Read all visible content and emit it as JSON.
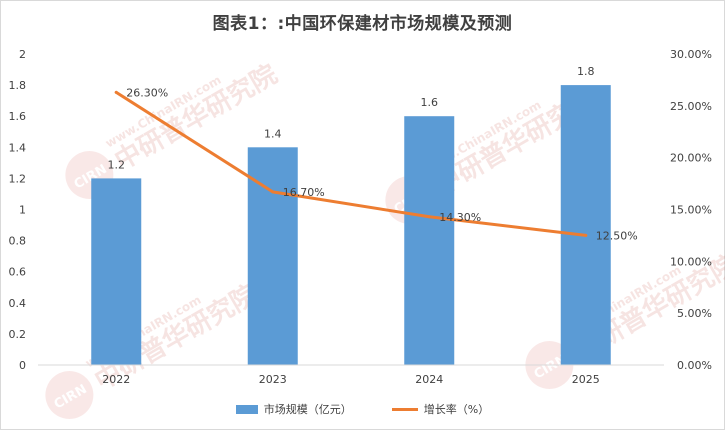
{
  "title": "图表1：:中国环保建材市场规模及预测",
  "chart_data": {
    "type": "bar+line",
    "categories": [
      "2022",
      "2023",
      "2024",
      "2025"
    ],
    "series": [
      {
        "name": "市场规模（亿元）",
        "type": "bar",
        "axis": "left",
        "values": [
          1.2,
          1.4,
          1.6,
          1.8
        ],
        "labels": [
          "1.2",
          "1.4",
          "1.6",
          "1.8"
        ],
        "color": "#5b9bd5"
      },
      {
        "name": "增长率（%）",
        "type": "line",
        "axis": "right",
        "values": [
          26.3,
          16.7,
          14.3,
          12.5
        ],
        "labels": [
          "26.30%",
          "16.70%",
          "14.30%",
          "12.50%"
        ],
        "color": "#ed7d31"
      }
    ],
    "y_left": {
      "min": 0,
      "max": 2,
      "ticks": [
        0,
        0.2,
        0.4,
        0.6,
        0.8,
        1,
        1.2,
        1.4,
        1.6,
        1.8,
        2
      ],
      "tick_labels": [
        "0",
        "0.2",
        "0.4",
        "0.6",
        "0.8",
        "1",
        "1.2",
        "1.4",
        "1.6",
        "1.8",
        "2"
      ]
    },
    "y_right": {
      "min": 0,
      "max": 30,
      "ticks": [
        0,
        5,
        10,
        15,
        20,
        25,
        30
      ],
      "tick_labels": [
        "0.00%",
        "5.00%",
        "10.00%",
        "15.00%",
        "20.00%",
        "25.00%",
        "30.00%"
      ]
    },
    "legend_position": "bottom",
    "grid": false
  },
  "legend": {
    "bar_label": "市场规模（亿元）",
    "line_label": "增长率（%）"
  },
  "watermark": {
    "text": "中研普华研究院",
    "url_text": "www.ChinaIRN.com",
    "logo_text": "CIRN"
  }
}
